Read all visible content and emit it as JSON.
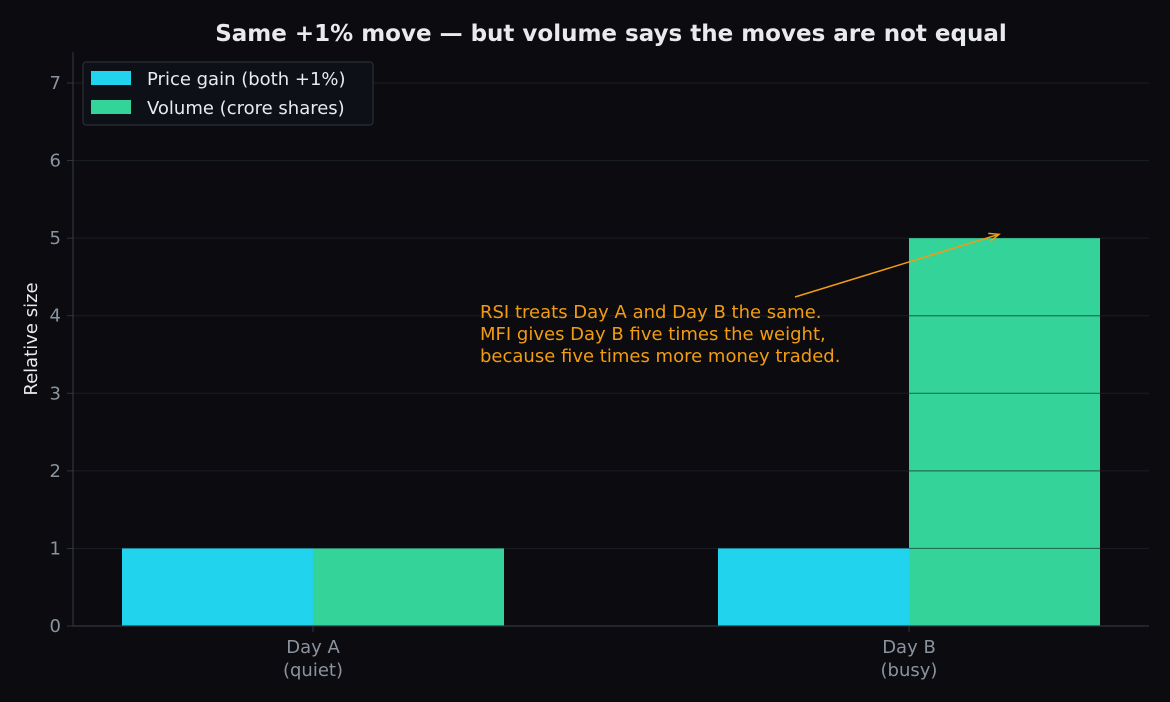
{
  "chart_data": {
    "type": "bar",
    "title": "Same +1% move — but volume says the moves are not equal",
    "xlabel": "",
    "ylabel": "Relative size",
    "categories": [
      [
        "Day A",
        "(quiet)"
      ],
      [
        "Day B",
        "(busy)"
      ]
    ],
    "series": [
      {
        "name": "Price gain (both +1%)",
        "values": [
          1,
          1
        ],
        "color": "#22d3ee"
      },
      {
        "name": "Volume (crore shares)",
        "values": [
          1,
          5
        ],
        "color": "#34d399"
      }
    ],
    "ylim": [
      0,
      7.4
    ],
    "yticks": [
      0,
      1,
      2,
      3,
      4,
      5,
      6,
      7
    ],
    "grid": true,
    "legend_position": "top-left",
    "annotation": {
      "lines": [
        "RSI treats Day A and Day B the same.",
        "MFI gives Day B five times the weight,",
        "because five times more money traded."
      ],
      "color": "#f39c12",
      "arrow_target": {
        "category": 1,
        "value": 5.05
      }
    },
    "colors": {
      "background": "#0b0b10",
      "grid": "#1b1f26",
      "axis": "#30363d",
      "text": "#e8eaed",
      "tick": "#8b949e"
    }
  }
}
